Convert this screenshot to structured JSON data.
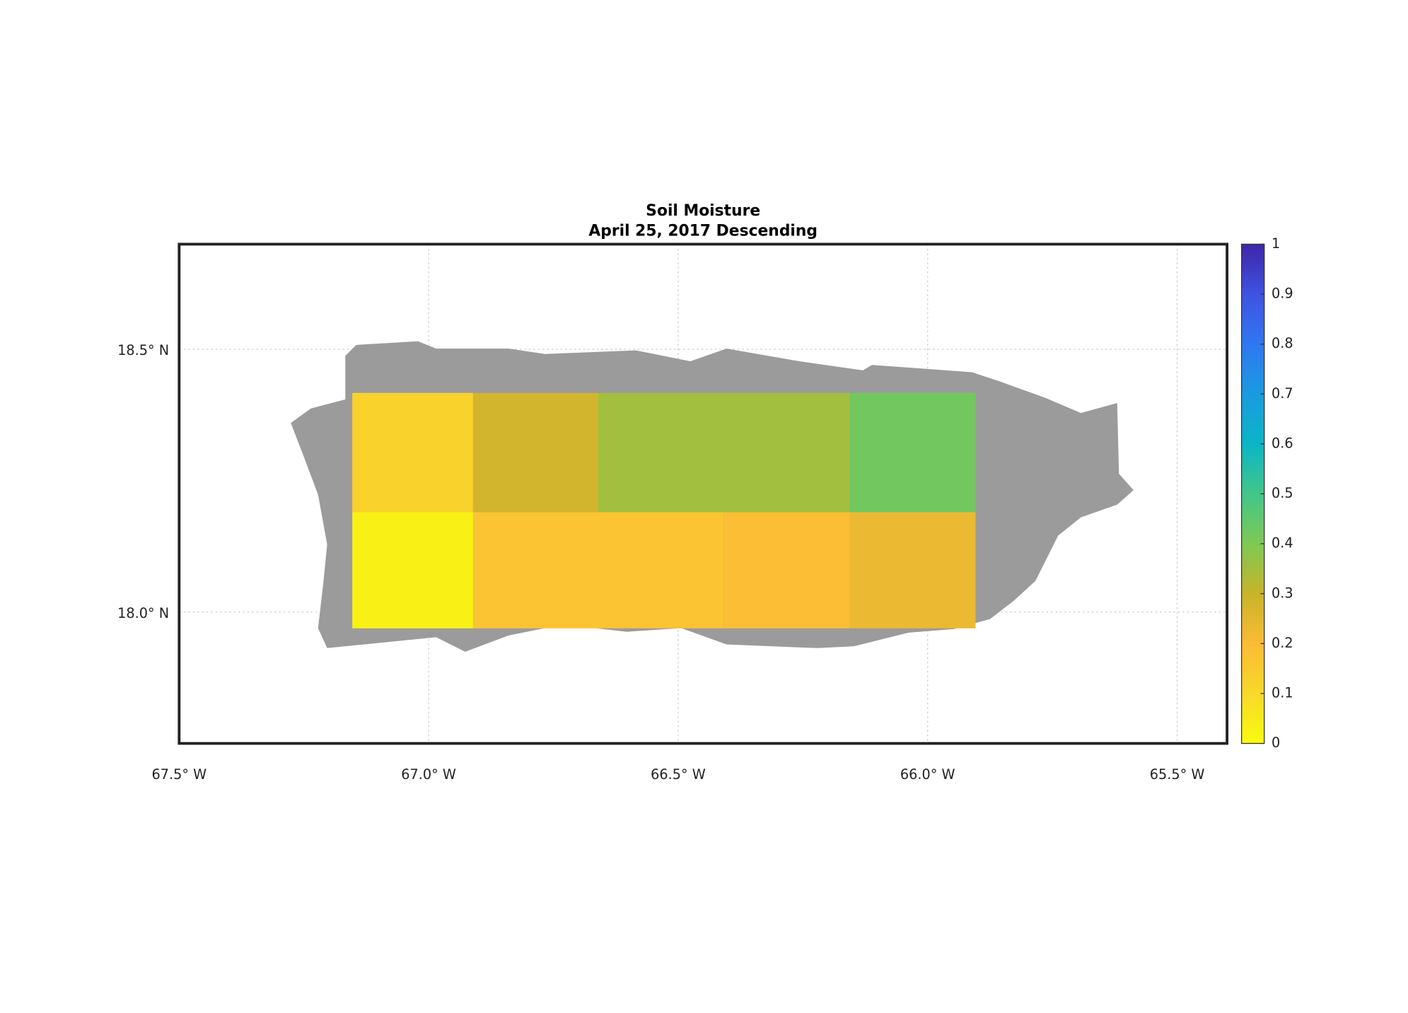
{
  "chart_data": {
    "type": "heatmap",
    "title": "Soil Moisture",
    "subtitle": "April 25, 2017 Descending",
    "xlim": [
      -67.5,
      -65.4
    ],
    "ylim": [
      17.75,
      18.7
    ],
    "xticks": [
      {
        "value": -67.5,
        "label": "67.5° W"
      },
      {
        "value": -67.0,
        "label": "67.0° W"
      },
      {
        "value": -66.5,
        "label": "66.5° W"
      },
      {
        "value": -66.0,
        "label": "66.0° W"
      },
      {
        "value": -65.5,
        "label": "65.5° W"
      }
    ],
    "yticks": [
      {
        "value": 18.0,
        "label": "18.0° N"
      },
      {
        "value": 18.5,
        "label": "18.5° N"
      }
    ],
    "grid": true,
    "lon_edges": [
      -67.153,
      -66.911,
      -66.66,
      -66.409,
      -66.156,
      -65.904
    ],
    "lat_edges": [
      18.417,
      18.19,
      17.969
    ],
    "values": [
      [
        0.12,
        0.28,
        0.35,
        0.35,
        0.42
      ],
      [
        0.03,
        0.17,
        0.17,
        0.19,
        0.23
      ]
    ],
    "clim": [
      0,
      1
    ],
    "cticks": [
      0,
      0.1,
      0.2,
      0.3,
      0.4,
      0.5,
      0.6,
      0.7,
      0.8,
      0.9,
      1
    ],
    "colormap": [
      "#f9fb0e",
      "#f8d82a",
      "#fbbb35",
      "#c8b42a",
      "#7ec954",
      "#42c68a",
      "#0bb5c6",
      "#1a9be0",
      "#3077f2",
      "#3f52e2",
      "#3e26a8"
    ]
  }
}
